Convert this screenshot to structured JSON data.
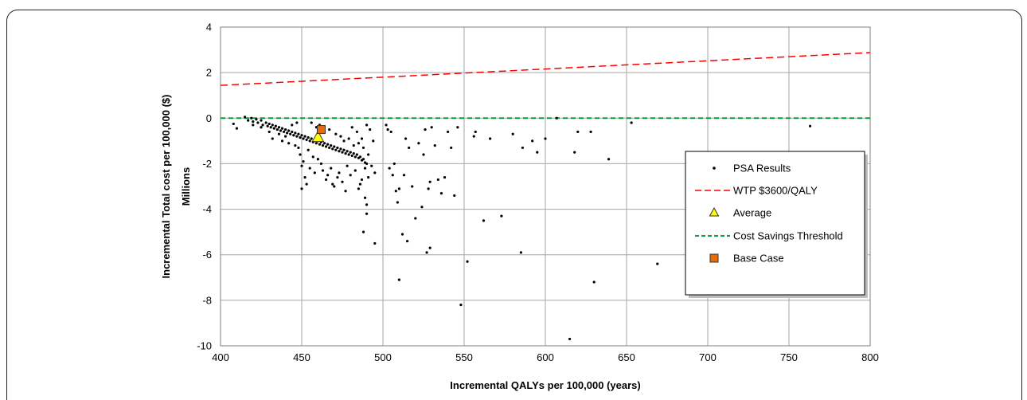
{
  "chart_data": {
    "type": "scatter",
    "title": "",
    "xlabel": "Incremental QALYs per 100,000 (years)",
    "ylabel": "Incremental Total cost  per 100,000 ($)",
    "y_unit_label": "Millions",
    "xlim": [
      400,
      800
    ],
    "ylim": [
      -10,
      4
    ],
    "xticks": [
      400,
      450,
      500,
      550,
      600,
      650,
      700,
      750,
      800
    ],
    "yticks": [
      -10,
      -8,
      -6,
      -4,
      -2,
      0,
      2,
      4
    ],
    "grid": true,
    "legend_position": "right",
    "series": [
      {
        "name": "PSA Results",
        "kind": "scatter",
        "color": "#000000",
        "points": [
          [
            408,
            -0.25
          ],
          [
            410,
            -0.45
          ],
          [
            415,
            0.05
          ],
          [
            417,
            -0.1
          ],
          [
            419,
            0.0
          ],
          [
            420,
            -0.15
          ],
          [
            422,
            -0.05
          ],
          [
            423,
            -0.2
          ],
          [
            425,
            -0.1
          ],
          [
            426,
            -0.3
          ],
          [
            428,
            -0.2
          ],
          [
            429,
            -0.35
          ],
          [
            430,
            -0.25
          ],
          [
            431,
            -0.4
          ],
          [
            432,
            -0.3
          ],
          [
            433,
            -0.45
          ],
          [
            434,
            -0.35
          ],
          [
            435,
            -0.5
          ],
          [
            436,
            -0.4
          ],
          [
            437,
            -0.55
          ],
          [
            438,
            -0.45
          ],
          [
            439,
            -0.6
          ],
          [
            440,
            -0.5
          ],
          [
            441,
            -0.65
          ],
          [
            442,
            -0.55
          ],
          [
            443,
            -0.7
          ],
          [
            444,
            -0.6
          ],
          [
            445,
            -0.75
          ],
          [
            446,
            -0.65
          ],
          [
            447,
            -0.8
          ],
          [
            448,
            -0.7
          ],
          [
            449,
            -0.85
          ],
          [
            450,
            -0.75
          ],
          [
            451,
            -0.9
          ],
          [
            452,
            -0.8
          ],
          [
            453,
            -0.95
          ],
          [
            454,
            -0.85
          ],
          [
            455,
            -1.0
          ],
          [
            456,
            -0.9
          ],
          [
            457,
            -1.05
          ],
          [
            458,
            -0.95
          ],
          [
            459,
            -1.1
          ],
          [
            460,
            -1.0
          ],
          [
            461,
            -1.15
          ],
          [
            462,
            -1.05
          ],
          [
            463,
            -1.2
          ],
          [
            464,
            -1.1
          ],
          [
            465,
            -1.25
          ],
          [
            466,
            -1.15
          ],
          [
            467,
            -1.3
          ],
          [
            468,
            -1.2
          ],
          [
            469,
            -1.35
          ],
          [
            470,
            -1.25
          ],
          [
            471,
            -1.4
          ],
          [
            472,
            -1.3
          ],
          [
            473,
            -1.45
          ],
          [
            474,
            -1.35
          ],
          [
            475,
            -1.5
          ],
          [
            476,
            -1.4
          ],
          [
            477,
            -1.55
          ],
          [
            478,
            -1.45
          ],
          [
            479,
            -1.6
          ],
          [
            480,
            -1.5
          ],
          [
            481,
            -1.65
          ],
          [
            482,
            -1.55
          ],
          [
            483,
            -1.7
          ],
          [
            484,
            -1.6
          ],
          [
            485,
            -1.75
          ],
          [
            486,
            -1.7
          ],
          [
            487,
            -1.85
          ],
          [
            488,
            -1.8
          ],
          [
            489,
            -1.95
          ],
          [
            490,
            -2.0
          ],
          [
            420,
            -0.3
          ],
          [
            425,
            -0.4
          ],
          [
            430,
            -0.6
          ],
          [
            432,
            -0.9
          ],
          [
            436,
            -0.7
          ],
          [
            438,
            -1.0
          ],
          [
            440,
            -0.8
          ],
          [
            442,
            -1.1
          ],
          [
            444,
            -0.3
          ],
          [
            446,
            -1.2
          ],
          [
            447,
            -0.2
          ],
          [
            448,
            -1.3
          ],
          [
            449,
            -1.6
          ],
          [
            450,
            -2.1
          ],
          [
            450,
            -3.1
          ],
          [
            451,
            -1.9
          ],
          [
            452,
            -2.6
          ],
          [
            453,
            -2.9
          ],
          [
            454,
            -1.4
          ],
          [
            455,
            -2.2
          ],
          [
            456,
            -0.2
          ],
          [
            457,
            -1.7
          ],
          [
            458,
            -2.4
          ],
          [
            459,
            -0.4
          ],
          [
            460,
            -1.8
          ],
          [
            461,
            -0.3
          ],
          [
            462,
            -2.0
          ],
          [
            463,
            -2.3
          ],
          [
            464,
            -0.6
          ],
          [
            465,
            -2.7
          ],
          [
            466,
            -2.5
          ],
          [
            467,
            -0.5
          ],
          [
            468,
            -2.2
          ],
          [
            469,
            -2.9
          ],
          [
            470,
            -3.0
          ],
          [
            471,
            -0.7
          ],
          [
            472,
            -2.6
          ],
          [
            473,
            -2.4
          ],
          [
            474,
            -0.8
          ],
          [
            475,
            -2.8
          ],
          [
            476,
            -1.0
          ],
          [
            477,
            -3.2
          ],
          [
            478,
            -2.1
          ],
          [
            479,
            -0.9
          ],
          [
            480,
            -2.5
          ],
          [
            481,
            -0.4
          ],
          [
            482,
            -1.2
          ],
          [
            483,
            -2.3
          ],
          [
            484,
            -0.6
          ],
          [
            485,
            -1.1
          ],
          [
            486,
            -2.9
          ],
          [
            487,
            -0.9
          ],
          [
            488,
            -1.3
          ],
          [
            489,
            -2.2
          ],
          [
            490,
            -0.3
          ],
          [
            491,
            -1.6
          ],
          [
            492,
            -0.5
          ],
          [
            493,
            -2.1
          ],
          [
            494,
            -1.0
          ],
          [
            495,
            -2.4
          ],
          [
            485,
            -3.1
          ],
          [
            487,
            -2.7
          ],
          [
            489,
            -3.5
          ],
          [
            490,
            -4.2
          ],
          [
            490,
            -3.8
          ],
          [
            488,
            -5.0
          ],
          [
            495,
            -5.5
          ],
          [
            491,
            -2.6
          ],
          [
            502,
            -0.3
          ],
          [
            503,
            -0.5
          ],
          [
            505,
            -0.6
          ],
          [
            504,
            -2.2
          ],
          [
            506,
            -2.5
          ],
          [
            507,
            -2.0
          ],
          [
            508,
            -3.2
          ],
          [
            509,
            -3.7
          ],
          [
            510,
            -3.1
          ],
          [
            510,
            -7.1
          ],
          [
            512,
            -5.1
          ],
          [
            513,
            -2.5
          ],
          [
            514,
            -0.9
          ],
          [
            515,
            -5.4
          ],
          [
            516,
            -1.3
          ],
          [
            518,
            -3.0
          ],
          [
            520,
            -4.4
          ],
          [
            522,
            -1.1
          ],
          [
            524,
            -3.9
          ],
          [
            525,
            -1.6
          ],
          [
            526,
            -0.5
          ],
          [
            528,
            -3.1
          ],
          [
            529,
            -2.8
          ],
          [
            527,
            -5.9
          ],
          [
            529,
            -5.7
          ],
          [
            530,
            -0.4
          ],
          [
            532,
            -1.2
          ],
          [
            534,
            -2.7
          ],
          [
            536,
            -3.3
          ],
          [
            538,
            -2.6
          ],
          [
            540,
            -0.6
          ],
          [
            542,
            -1.3
          ],
          [
            544,
            -3.4
          ],
          [
            546,
            -0.4
          ],
          [
            548,
            -8.2
          ],
          [
            552,
            -6.3
          ],
          [
            556,
            -0.8
          ],
          [
            557,
            -0.6
          ],
          [
            562,
            -4.5
          ],
          [
            566,
            -0.9
          ],
          [
            573,
            -4.3
          ],
          [
            580,
            -0.7
          ],
          [
            585,
            -5.9
          ],
          [
            586,
            -1.3
          ],
          [
            592,
            -1.0
          ],
          [
            595,
            -1.5
          ],
          [
            600,
            -0.9
          ],
          [
            607,
            0.0
          ],
          [
            615,
            -9.7
          ],
          [
            618,
            -1.5
          ],
          [
            620,
            -0.6
          ],
          [
            628,
            -0.6
          ],
          [
            630,
            -7.2
          ],
          [
            639,
            -1.8
          ],
          [
            653,
            -0.2
          ],
          [
            669,
            -6.4
          ],
          [
            763,
            -0.35
          ]
        ]
      },
      {
        "name": "WTP $3600/QALY",
        "kind": "line",
        "color": "#ff0000",
        "x": [
          400,
          800
        ],
        "y": [
          1.44,
          2.88
        ]
      },
      {
        "name": "Average",
        "kind": "marker",
        "color": "#ffff00",
        "x": 460,
        "y": -0.85
      },
      {
        "name": "Cost Savings Threshold",
        "kind": "line",
        "color": "#00a03c",
        "x": [
          400,
          800
        ],
        "y": [
          0,
          0
        ]
      },
      {
        "name": "Base Case",
        "kind": "marker",
        "color": "#e46c0a",
        "x": 462,
        "y": -0.5
      }
    ]
  }
}
